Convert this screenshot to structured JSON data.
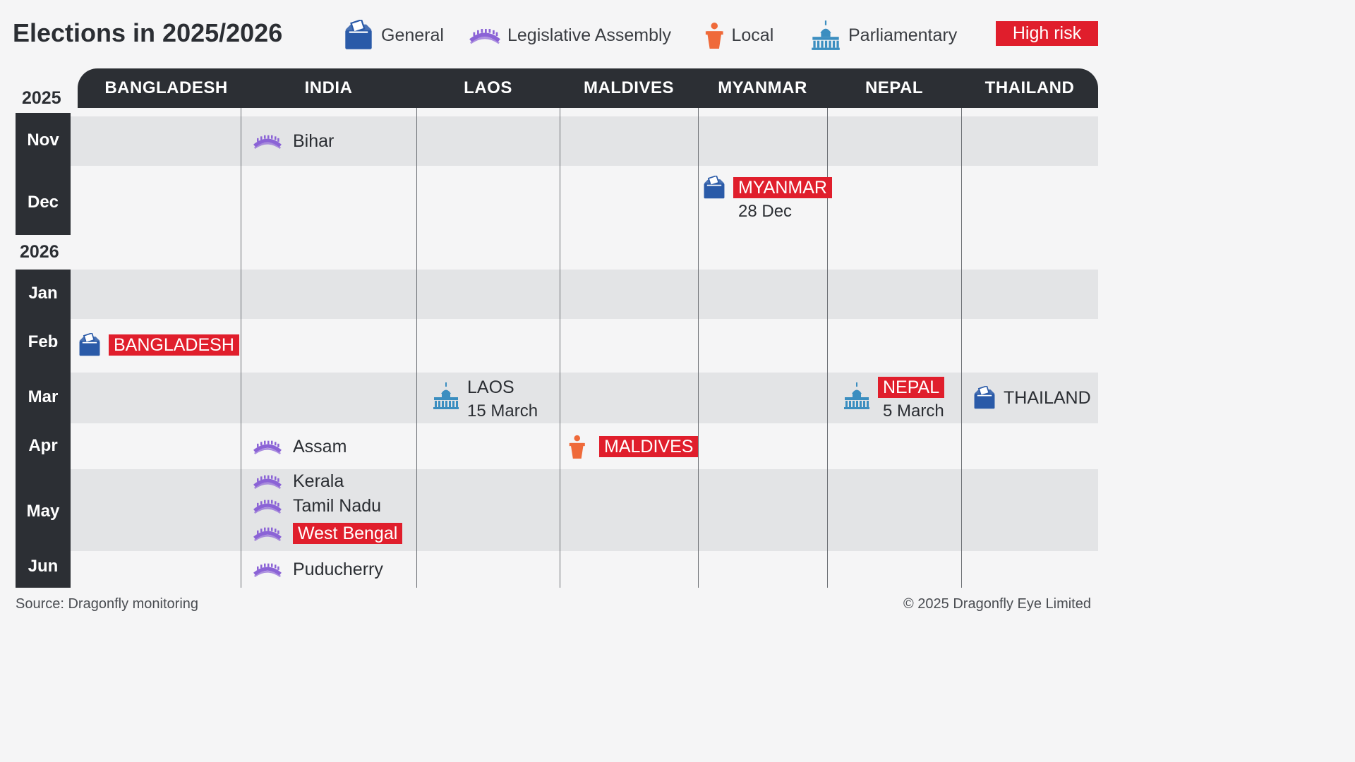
{
  "chart_data": {
    "type": "table",
    "title": "Elections in 2025/2026",
    "legend": [
      {
        "type": "general",
        "label": "General",
        "icon": "ballot-box-icon",
        "color": "#2a5aa8"
      },
      {
        "type": "legislative",
        "label": "Legislative Assembly",
        "icon": "assembly-arch-icon",
        "color": "#8b63d6"
      },
      {
        "type": "local",
        "label": "Local",
        "icon": "podium-icon",
        "color": "#ef6a3a"
      },
      {
        "type": "parliamentary",
        "label": "Parliamentary",
        "icon": "parliament-building-icon",
        "color": "#3b8ec0"
      }
    ],
    "high_risk_label": "High risk",
    "high_risk_color": "#e01e2c",
    "columns": [
      "BANGLADESH",
      "INDIA",
      "LAOS",
      "MALDIVES",
      "MYANMAR",
      "NEPAL",
      "THAILAND"
    ],
    "years": [
      "2025",
      "2026"
    ],
    "months": [
      "Nov",
      "Dec",
      "Jan",
      "Feb",
      "Mar",
      "Apr",
      "May",
      "Jun"
    ],
    "events": [
      {
        "country": "INDIA",
        "month": "Nov",
        "label": "Bihar",
        "type": "legislative",
        "high_risk": false
      },
      {
        "country": "MYANMAR",
        "month": "Dec",
        "label": "MYANMAR",
        "date": "28 Dec",
        "type": "general",
        "high_risk": true
      },
      {
        "country": "BANGLADESH",
        "month": "Feb",
        "label": "BANGLADESH",
        "type": "general",
        "high_risk": true
      },
      {
        "country": "LAOS",
        "month": "Mar",
        "label": "LAOS",
        "date": "15 March",
        "type": "parliamentary",
        "high_risk": false
      },
      {
        "country": "NEPAL",
        "month": "Mar",
        "label": "NEPAL",
        "date": "5 March",
        "type": "parliamentary",
        "high_risk": true
      },
      {
        "country": "THAILAND",
        "month": "Mar",
        "label": "THAILAND",
        "type": "general",
        "high_risk": false
      },
      {
        "country": "INDIA",
        "month": "Apr",
        "label": "Assam",
        "type": "legislative",
        "high_risk": false
      },
      {
        "country": "MALDIVES",
        "month": "Apr",
        "label": "MALDIVES",
        "type": "local",
        "high_risk": true
      },
      {
        "country": "INDIA",
        "month": "May",
        "label": "Kerala",
        "type": "legislative",
        "high_risk": false
      },
      {
        "country": "INDIA",
        "month": "May",
        "label": "Tamil Nadu",
        "type": "legislative",
        "high_risk": false
      },
      {
        "country": "INDIA",
        "month": "May",
        "label": "West Bengal",
        "type": "legislative",
        "high_risk": true
      },
      {
        "country": "INDIA",
        "month": "Jun",
        "label": "Puducherry",
        "type": "legislative",
        "high_risk": false
      }
    ]
  },
  "footer": {
    "source": "Source: Dragonfly monitoring",
    "copyright": "© 2025 Dragonfly Eye Limited"
  }
}
